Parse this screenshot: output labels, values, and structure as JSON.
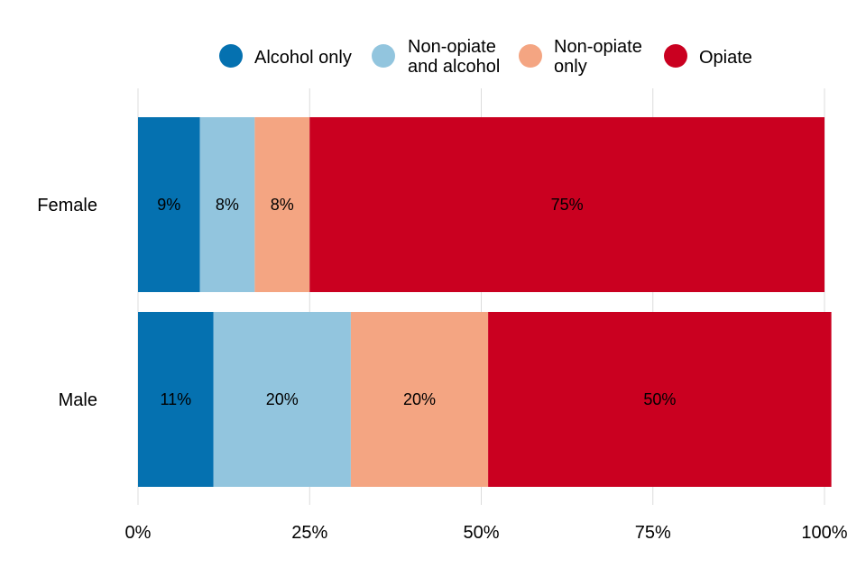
{
  "chart_data": {
    "type": "bar",
    "orientation": "horizontal",
    "stacked": true,
    "categories": [
      "Female",
      "Male"
    ],
    "series": [
      {
        "name": "Alcohol only",
        "lines": [
          "Alcohol only"
        ],
        "color": "#0571b0",
        "values": [
          9,
          11
        ],
        "labels": [
          "9%",
          "11%"
        ]
      },
      {
        "name": "Non-opiate and alcohol",
        "lines": [
          "Non-opiate",
          "and alcohol"
        ],
        "color": "#92c5de",
        "values": [
          8,
          20
        ],
        "labels": [
          "8%",
          "20%"
        ]
      },
      {
        "name": "Non-opiate only",
        "lines": [
          "Non-opiate",
          "only"
        ],
        "color": "#f4a582",
        "values": [
          8,
          20
        ],
        "labels": [
          "8%",
          "20%"
        ]
      },
      {
        "name": "Opiate",
        "lines": [
          "Opiate"
        ],
        "color": "#ca0020",
        "values": [
          75,
          50
        ],
        "labels": [
          "75%",
          "50%"
        ]
      }
    ],
    "xlim": [
      0,
      100
    ],
    "x_ticks": [
      0,
      25,
      50,
      75,
      100
    ],
    "x_tick_labels": [
      "0%",
      "25%",
      "50%",
      "75%",
      "100%"
    ],
    "grid": true,
    "legend_position": "top",
    "title": "",
    "xlabel": "",
    "ylabel": ""
  }
}
